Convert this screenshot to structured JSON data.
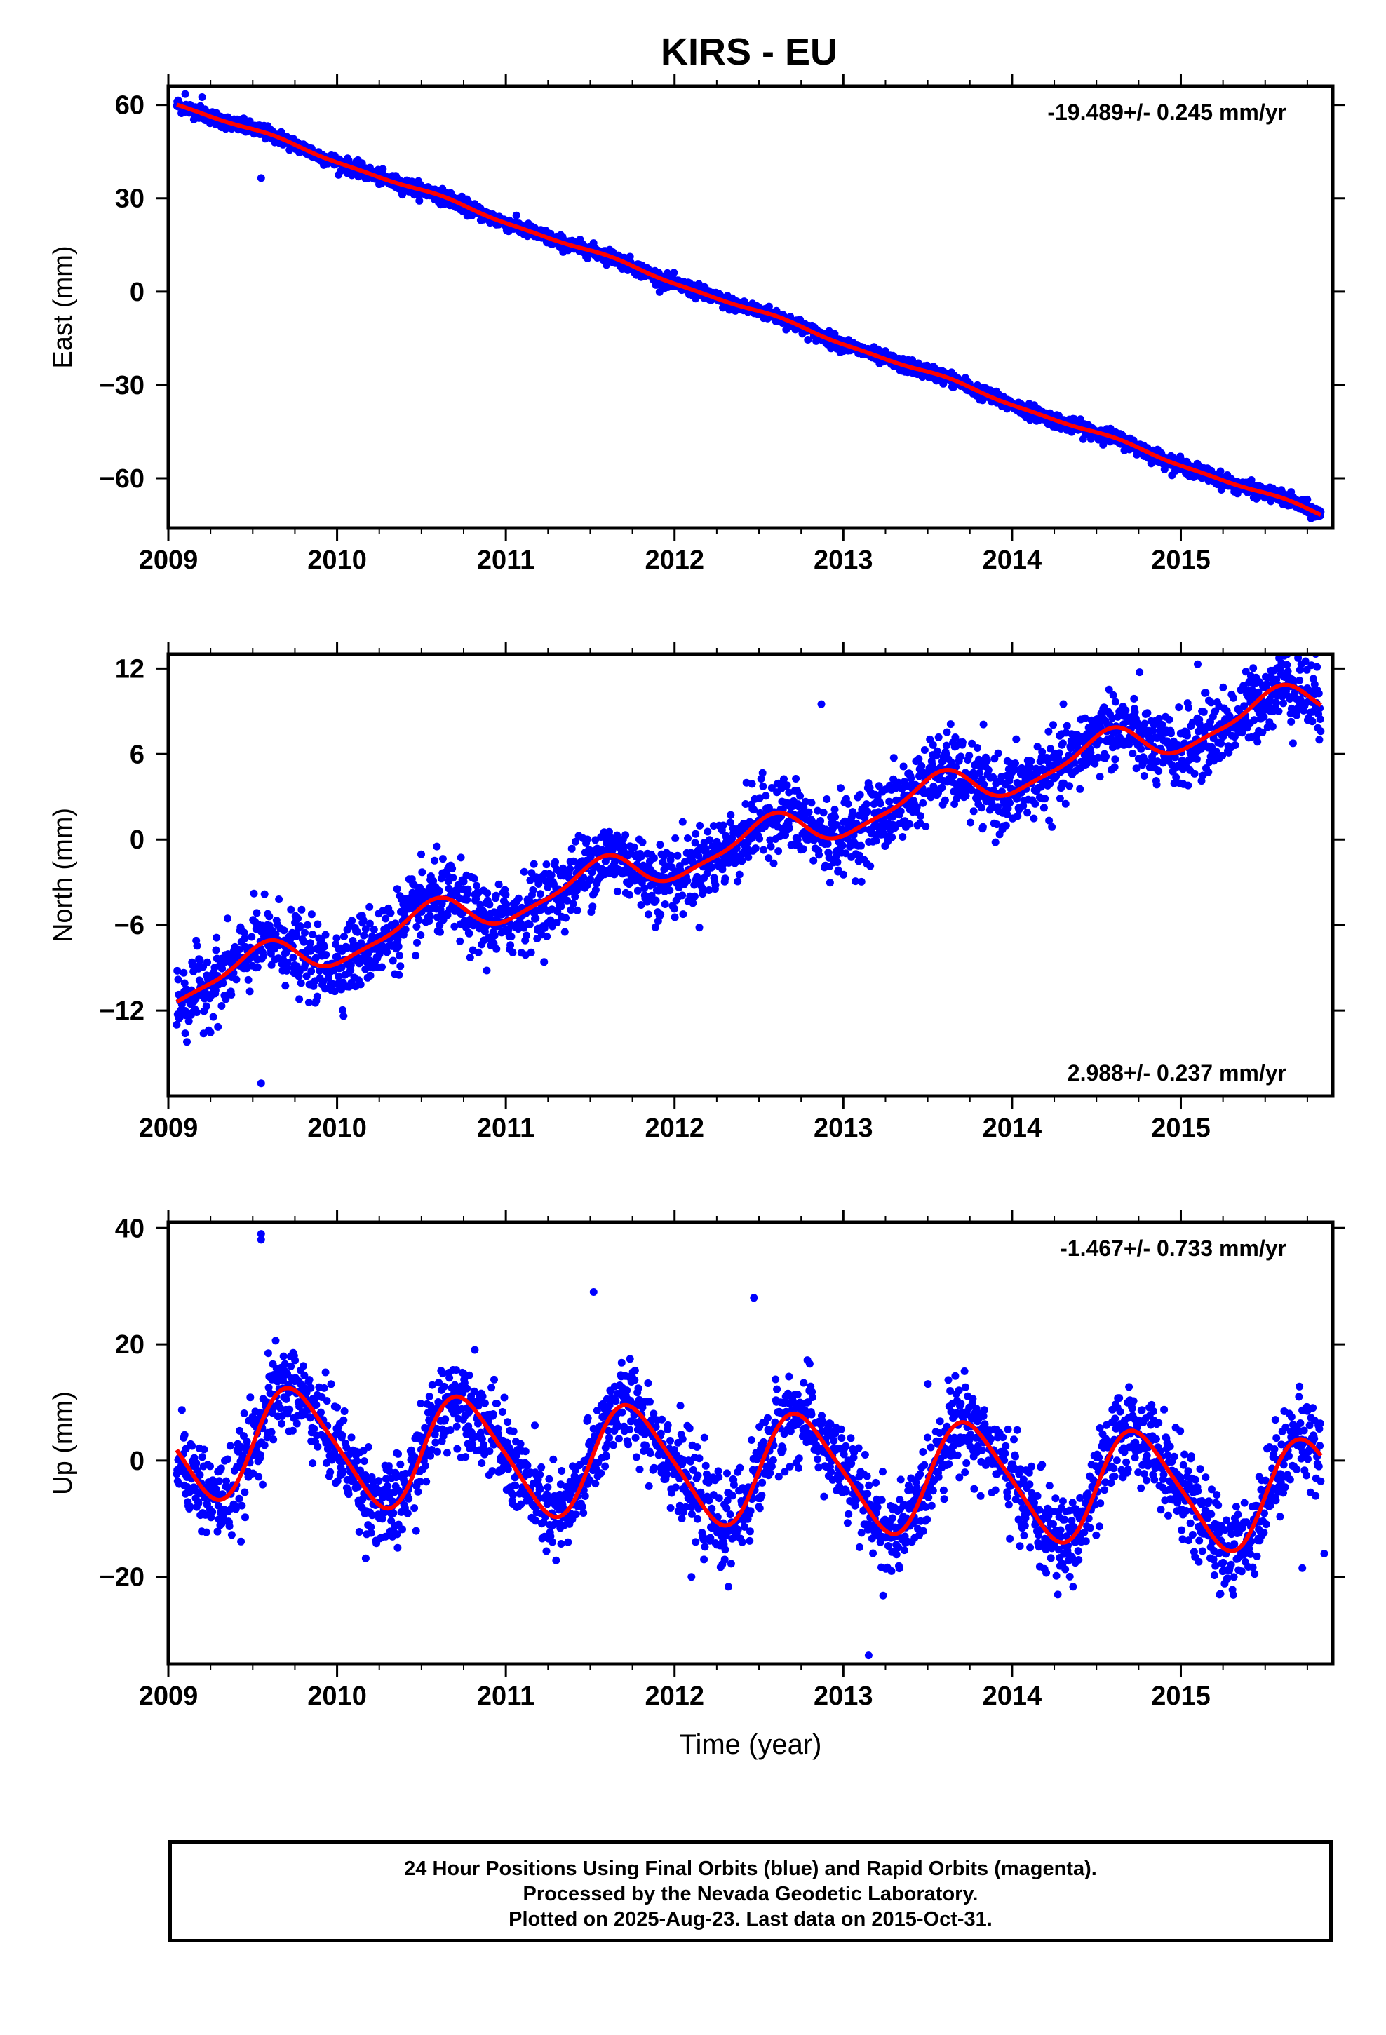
{
  "title": "KIRS - EU",
  "colors": {
    "points": "#0000ff",
    "fit": "#ff0000",
    "axes": "#000000"
  },
  "chart_data": [
    {
      "type": "scatter",
      "ylabel": "East (mm)",
      "xlabel": "",
      "xlim": [
        2009,
        2015.9
      ],
      "ylim": [
        -76,
        66
      ],
      "xticks": [
        "2009",
        "2010",
        "2011",
        "2012",
        "2013",
        "2014",
        "2015"
      ],
      "yticks": [
        60,
        30,
        0,
        -30,
        -60
      ],
      "ytick_labels": [
        "60",
        "30",
        "0",
        "−30",
        "−60"
      ],
      "rate_text": "-19.489+/- 0.245 mm/yr",
      "rate_position": "top-right",
      "fit_curve": {
        "trend_mm_per_yr": -19.489,
        "ref_year": 2009.05,
        "offset_mm": 60.5,
        "annual_amp_mm": 0.6,
        "annual_phase_yr": 0.1,
        "semiannual_amp_mm": 0.25,
        "semiannual_phase_yr": 0.0,
        "span": [
          2009.05,
          2015.83
        ]
      },
      "points_pattern": {
        "daily_scatter_mm": 1.1,
        "gaps": []
      },
      "outliers": [
        [
          2009.55,
          36.5
        ],
        [
          2009.1,
          63.5
        ],
        [
          2009.2,
          62.5
        ]
      ]
    },
    {
      "type": "scatter",
      "ylabel": "North (mm)",
      "xlabel": "",
      "xlim": [
        2009,
        2015.9
      ],
      "ylim": [
        -18,
        13
      ],
      "xticks": [
        "2009",
        "2010",
        "2011",
        "2012",
        "2013",
        "2014",
        "2015"
      ],
      "yticks": [
        12,
        6,
        0,
        -6,
        -12
      ],
      "ytick_labels": [
        "12",
        "6",
        "0",
        "−6",
        "−12"
      ],
      "rate_text": "2.988+/- 0.237 mm/yr",
      "rate_position": "bottom-right",
      "fit_curve": {
        "trend_mm_per_yr": 2.988,
        "ref_year": 2009.05,
        "offset_mm": -10.3,
        "annual_amp_mm": 1.3,
        "annual_phase_yr": 0.05,
        "semiannual_amp_mm": 0.35,
        "semiannual_phase_yr": 0.0,
        "span": [
          2009.05,
          2015.83
        ]
      },
      "points_pattern": {
        "daily_scatter_mm": 1.3,
        "gaps": []
      },
      "outliers": [
        [
          2009.55,
          -17.1
        ],
        [
          2012.87,
          9.5
        ],
        [
          2015.1,
          12.3
        ],
        [
          2009.1,
          -13.6
        ]
      ]
    },
    {
      "type": "scatter",
      "ylabel": "Up (mm)",
      "xlabel": "Time (year)",
      "xlim": [
        2009,
        2015.9
      ],
      "ylim": [
        -35,
        41
      ],
      "xticks": [
        "2009",
        "2010",
        "2011",
        "2012",
        "2013",
        "2014",
        "2015"
      ],
      "yticks": [
        40,
        20,
        0,
        -20
      ],
      "ytick_labels": [
        "40",
        "20",
        "0",
        "−20"
      ],
      "rate_text": "-1.467+/- 0.733 mm/yr",
      "rate_position": "top-right",
      "fit_curve": {
        "trend_mm_per_yr": -1.467,
        "ref_year": 2009.05,
        "offset_mm": 3.6,
        "annual_amp_mm": 9.5,
        "annual_phase_yr": 0.08,
        "semiannual_amp_mm": 1.5,
        "semiannual_phase_yr": 0.0,
        "span": [
          2009.05,
          2015.83
        ]
      },
      "points_pattern": {
        "daily_scatter_mm": 3.8,
        "gaps": []
      },
      "outliers": [
        [
          2009.55,
          39.0
        ],
        [
          2009.55,
          38.0
        ],
        [
          2011.52,
          29.0
        ],
        [
          2012.47,
          28.0
        ],
        [
          2013.15,
          -33.5
        ],
        [
          2012.1,
          -20.0
        ],
        [
          2015.85,
          -16.0
        ],
        [
          2015.72,
          -18.5
        ]
      ]
    }
  ],
  "footer": {
    "line1": "24 Hour Positions Using Final Orbits (blue) and Rapid Orbits (magenta).",
    "line2": "Processed by the Nevada Geodetic Laboratory.",
    "line3": "Plotted on 2025-Aug-23. Last data on 2015-Oct-31."
  }
}
